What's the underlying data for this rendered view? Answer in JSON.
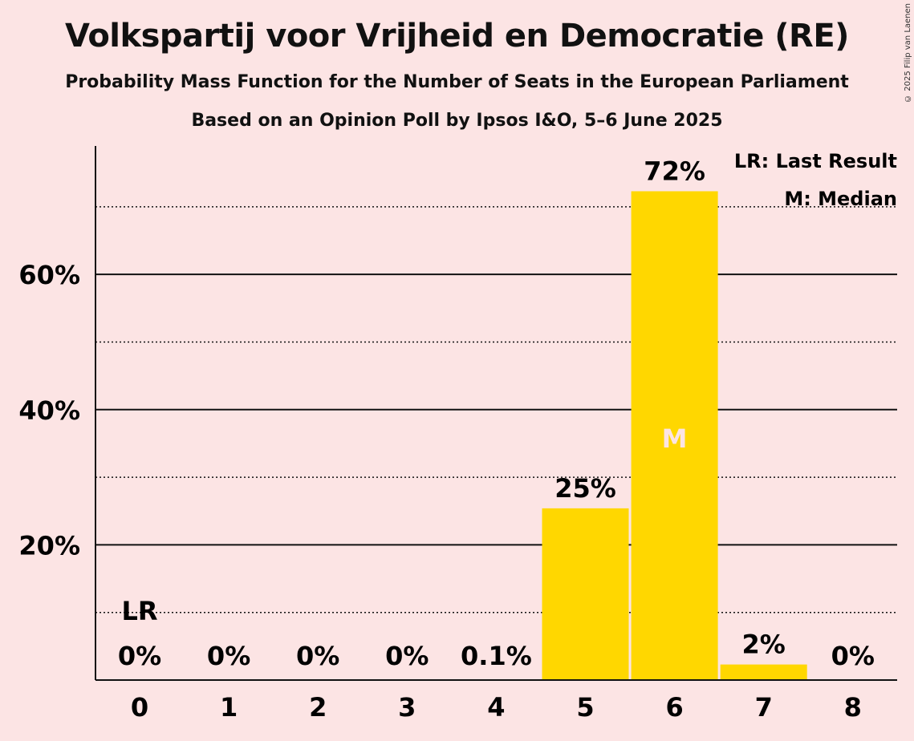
{
  "title": "Volkspartij voor Vrijheid en Democratie (RE)",
  "subtitle": "Probability Mass Function for the Number of Seats in the European Parliament",
  "subtitle2": "Based on an Opinion Poll by Ipsos I&O, 5–6 June 2025",
  "copyright": "© 2025 Filip van Laenen",
  "legend": {
    "last_result": "LR: Last Result",
    "median": "M: Median"
  },
  "colors": {
    "bar": "#ffd700",
    "background": "#fce4e4"
  },
  "chart_data": {
    "type": "bar",
    "categories": [
      "0",
      "1",
      "2",
      "3",
      "4",
      "5",
      "6",
      "7",
      "8"
    ],
    "values": [
      0,
      0,
      0,
      0,
      0.1,
      25.4,
      72.3,
      2.3,
      0
    ],
    "data_labels": [
      "0%",
      "0%",
      "0%",
      "0%",
      "0.1%",
      "25%",
      "72%",
      "2%",
      "0%"
    ],
    "y_ticks": [
      20,
      40,
      60
    ],
    "y_tick_labels": [
      "20%",
      "40%",
      "60%"
    ],
    "y_minor_ticks": [
      10,
      30,
      50,
      70
    ],
    "ylim": [
      0,
      79
    ],
    "last_result_category": "0",
    "last_result_label": "LR",
    "median_category": "6",
    "median_label": "M",
    "grid": true,
    "legend_position": "top-right"
  }
}
